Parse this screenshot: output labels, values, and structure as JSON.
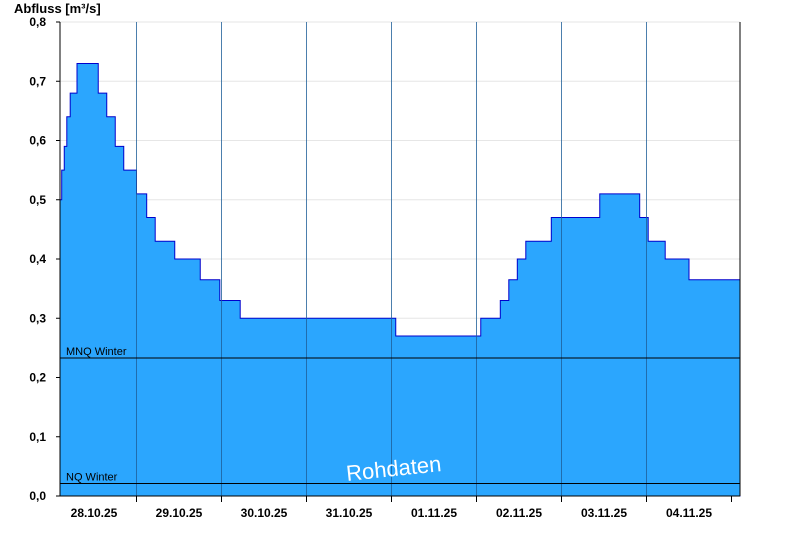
{
  "chart_data": {
    "type": "area",
    "ylabel": "Abfluss [m³/s]",
    "ylim": [
      0,
      0.8
    ],
    "yticks": [
      0.0,
      0.1,
      0.2,
      0.3,
      0.4,
      0.5,
      0.6,
      0.7,
      0.8
    ],
    "ytick_labels": [
      "0,0",
      "0,1",
      "0,2",
      "0,3",
      "0,4",
      "0,5",
      "0,6",
      "0,7",
      "0,8"
    ],
    "xlim_days": [
      -0.4,
      7.6
    ],
    "x_day_labels": [
      "28.10.25",
      "29.10.25",
      "30.10.25",
      "31.10.25",
      "01.11.25",
      "02.11.25",
      "03.11.25",
      "04.11.25"
    ],
    "fill_color": "#2ba6fe",
    "line_color": "#0000cc",
    "grid": true,
    "series": [
      {
        "step_points": [
          [
            -0.4,
            0.5
          ],
          [
            -0.38,
            0.55
          ],
          [
            -0.35,
            0.59
          ],
          [
            -0.32,
            0.64
          ],
          [
            -0.28,
            0.68
          ],
          [
            -0.2,
            0.73
          ],
          [
            0.05,
            0.68
          ],
          [
            0.15,
            0.64
          ],
          [
            0.25,
            0.59
          ],
          [
            0.35,
            0.55
          ],
          [
            0.5,
            0.51
          ],
          [
            0.62,
            0.47
          ],
          [
            0.72,
            0.43
          ],
          [
            0.95,
            0.4
          ],
          [
            1.25,
            0.365
          ],
          [
            1.48,
            0.33
          ],
          [
            1.72,
            0.3
          ],
          [
            3.55,
            0.27
          ],
          [
            4.55,
            0.3
          ],
          [
            4.78,
            0.33
          ],
          [
            4.88,
            0.365
          ],
          [
            4.98,
            0.4
          ],
          [
            5.08,
            0.43
          ],
          [
            5.38,
            0.47
          ],
          [
            5.95,
            0.51
          ],
          [
            6.42,
            0.47
          ],
          [
            6.52,
            0.43
          ],
          [
            6.72,
            0.4
          ],
          [
            7.0,
            0.365
          ],
          [
            7.6,
            0.365
          ]
        ]
      }
    ],
    "reference_lines": [
      {
        "label": "MNQ Winter",
        "value": 0.233
      },
      {
        "label": "NQ Winter",
        "value": 0.021
      }
    ],
    "annotation": "Rohdaten"
  }
}
